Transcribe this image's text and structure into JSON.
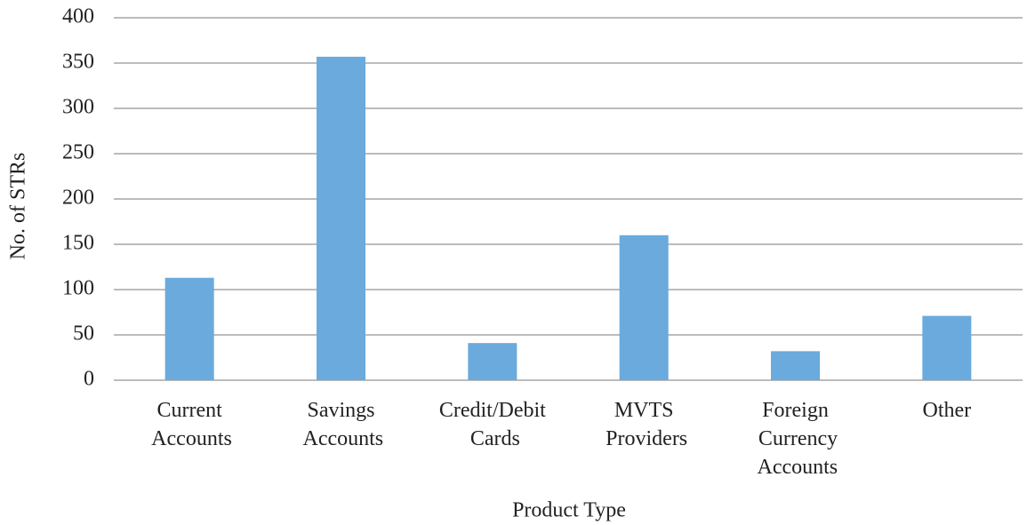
{
  "chart_data": {
    "type": "bar",
    "categories": [
      "Current Accounts",
      "Savings Accounts",
      "Credit/Debit Cards",
      "MVTS Providers",
      "Foreign Currency Accounts",
      "Other"
    ],
    "values": [
      113,
      357,
      41,
      160,
      32,
      71
    ],
    "color": "#6aaadc",
    "xlabel": "Product Type",
    "ylabel": "No. of STRs",
    "ylim": [
      0,
      400
    ],
    "yticks": [
      0,
      50,
      100,
      150,
      200,
      250,
      300,
      350,
      400
    ],
    "grid": true
  }
}
